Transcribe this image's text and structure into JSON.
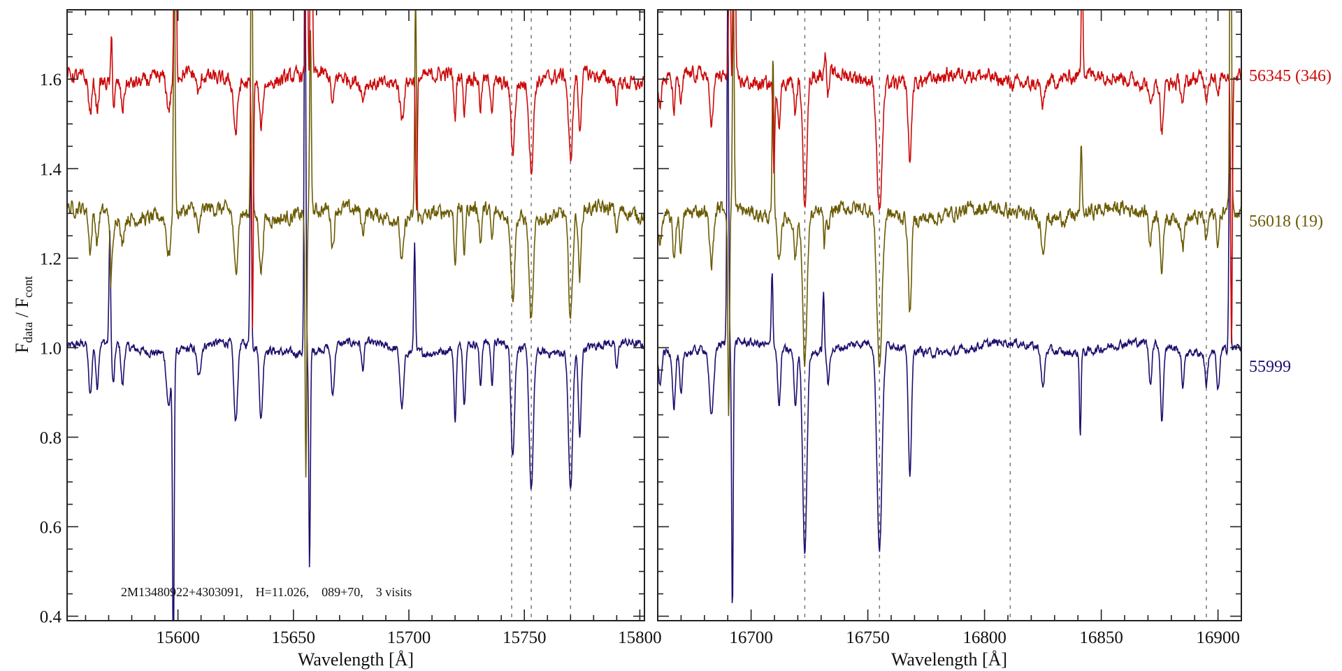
{
  "chart_data": [
    {
      "type": "line",
      "panel": "left",
      "xlabel": "Wavelength [Å]",
      "ylabel": "F_data / F_cont",
      "ylabel_main": "F",
      "ylabel_sub1": "data",
      "ylabel_mid": " / F",
      "ylabel_sub2": "cont",
      "xlim": [
        15552,
        15802
      ],
      "ylim": [
        0.39,
        1.755
      ],
      "xticks": [
        15600,
        15650,
        15700,
        15750,
        15800
      ],
      "xtick_labels": [
        "15600",
        "15650",
        "15700",
        "15750",
        "15800"
      ],
      "yticks": [
        0.4,
        0.6,
        0.8,
        1.0,
        1.2,
        1.4,
        1.6
      ],
      "ytick_labels": [
        "0.4",
        "0.6",
        "0.8",
        "1.0",
        "1.2",
        "1.4",
        "1.6"
      ],
      "dashed_lines_x": [
        15744.5,
        15753,
        15770
      ],
      "annotation": "2M13480922+4303091,    H=11.026,    089+70,    3 visits",
      "absorption_lines": [
        [
          15562,
          0.12,
          0.7
        ],
        [
          15565,
          0.1,
          0.6
        ],
        [
          15572,
          0.09,
          0.6
        ],
        [
          15576,
          0.09,
          0.6
        ],
        [
          15596,
          0.12,
          0.9
        ],
        [
          15609,
          0.07,
          0.8
        ],
        [
          15625,
          0.18,
          0.8
        ],
        [
          15636,
          0.16,
          0.7
        ],
        [
          15667,
          0.11,
          0.7
        ],
        [
          15680,
          0.06,
          0.6
        ],
        [
          15697,
          0.13,
          0.8
        ],
        [
          15720,
          0.16,
          0.5
        ],
        [
          15724,
          0.13,
          0.5
        ],
        [
          15731,
          0.1,
          0.5
        ],
        [
          15736,
          0.09,
          0.5
        ],
        [
          15745,
          0.24,
          0.8
        ],
        [
          15753,
          0.31,
          0.9
        ],
        [
          15770,
          0.31,
          0.9
        ],
        [
          15774,
          0.2,
          0.6
        ],
        [
          15790,
          0.06,
          0.6
        ]
      ],
      "sky_lines": [
        [
          15570.5,
          0.25
        ],
        [
          15598,
          1.2
        ],
        [
          15631.5,
          0.9
        ],
        [
          15655,
          1.0
        ],
        [
          15657,
          0.8
        ],
        [
          15702.5,
          0.5
        ]
      ]
    },
    {
      "type": "line",
      "panel": "right",
      "xlabel": "Wavelength [Å]",
      "xlim": [
        16660,
        16910
      ],
      "ylim": [
        0.39,
        1.755
      ],
      "xticks": [
        16700,
        16750,
        16800,
        16850,
        16900
      ],
      "xtick_labels": [
        "16700",
        "16750",
        "16800",
        "16850",
        "16900"
      ],
      "yticks": [
        0.4,
        0.6,
        0.8,
        1.0,
        1.2,
        1.4,
        1.6
      ],
      "dashed_lines_x": [
        16723,
        16755,
        16811,
        16895
      ],
      "absorption_lines": [
        [
          16661,
          0.08,
          0.6
        ],
        [
          16667,
          0.12,
          0.6
        ],
        [
          16670,
          0.1,
          0.6
        ],
        [
          16683,
          0.16,
          0.9
        ],
        [
          16712,
          0.13,
          0.6
        ],
        [
          16719,
          0.12,
          0.6
        ],
        [
          16723,
          0.44,
          0.9
        ],
        [
          16733,
          0.08,
          0.5
        ],
        [
          16755,
          0.46,
          1.1
        ],
        [
          16768,
          0.28,
          0.7
        ],
        [
          16825,
          0.09,
          0.7
        ],
        [
          16871,
          0.09,
          0.6
        ],
        [
          16876,
          0.17,
          0.6
        ],
        [
          16885,
          0.08,
          0.6
        ],
        [
          16895,
          0.07,
          0.6
        ],
        [
          16900,
          0.09,
          0.6
        ]
      ],
      "sky_lines": [
        [
          16690,
          0.8
        ],
        [
          16692,
          1.0
        ],
        [
          16709,
          0.35
        ],
        [
          16731,
          0.13
        ],
        [
          16841,
          0.3
        ],
        [
          16905,
          1.0
        ]
      ]
    }
  ],
  "series": [
    {
      "name": "55999",
      "label": "55999",
      "offset": 1.0,
      "line_scale": 1.0,
      "color": "#1e0e6e"
    },
    {
      "name": "56018",
      "label": "56018 (19)",
      "offset": 1.3,
      "line_scale": 0.75,
      "color": "#6b5c05"
    },
    {
      "name": "56345",
      "label": "56345 (346)",
      "offset": 1.6,
      "line_scale": 0.62,
      "color": "#cc0a0a"
    }
  ]
}
